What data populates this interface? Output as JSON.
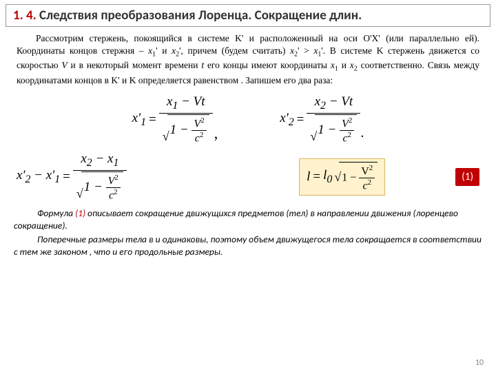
{
  "header": {
    "num": "1. 4.",
    "title": "Следствия преобразования Лоренца. Сокращение длин."
  },
  "intro_html": "Рассмотрим стержень, покоящийся в системе K' и расположенный на оси O'X' (или параллельно ей). Координаты концов стержня – <span class='var'>x</span><span class='sub'>1</span>' и <span class='var'>x</span><span class='sub'>2</span>', причем (будем считать) <span class='var'>x</span><span class='sub'>2</span>' &gt; <span class='var'>x</span><span class='sub'>1</span>'. В системе K стержень движется со скоростью <span class='var'>V</span> и в некоторый момент времени <span class='var'>t</span> его концы имеют координаты <span class='var'>x</span><span class='sub'>1</span> и <span class='var'>x</span><span class='sub'>2</span> соответственно. Связь между координатами концов в K' и K определяется равенством . Запишем его два раза:",
  "eq1": {
    "lhs": "x'<sub>1</sub>",
    "num": "x<sub>1</sub> − Vt"
  },
  "eq2": {
    "lhs": "x'<sub>2</sub>",
    "num": "x<sub>2</sub> − Vt"
  },
  "eq3": {
    "lhs": "x'<sub>2</sub> − x'<sub>1</sub>",
    "num": "x<sub>2</sub> − x<sub>1</sub>"
  },
  "eq4": {
    "lhs": "l",
    "rhs_coef": "l<sub>0</sub>"
  },
  "rad_inner": "1 − <span class='ifrac'><span class='inum'>V<span class='sup2'>2</span></span><span class='iden'>c<span class='sup2'>2</span></span></span>",
  "tag": "(1)",
  "bottom": {
    "p1_a": "Формула ",
    "p1_ref": "(1)",
    "p1_b": " описывает сокращение движущихся предметов (тел) в направлении движения (лоренцево сокращение).",
    "p2": "Поперечные размеры тела в  и  одинаковы, поэтому объем движущегося тела сокращается в соответствии с тем же законом , что и его продольные размеры."
  },
  "pagenum": "10",
  "colors": {
    "accent": "#c00000",
    "highlight_bg": "#fff2cc",
    "highlight_border": "#d6b85a"
  }
}
